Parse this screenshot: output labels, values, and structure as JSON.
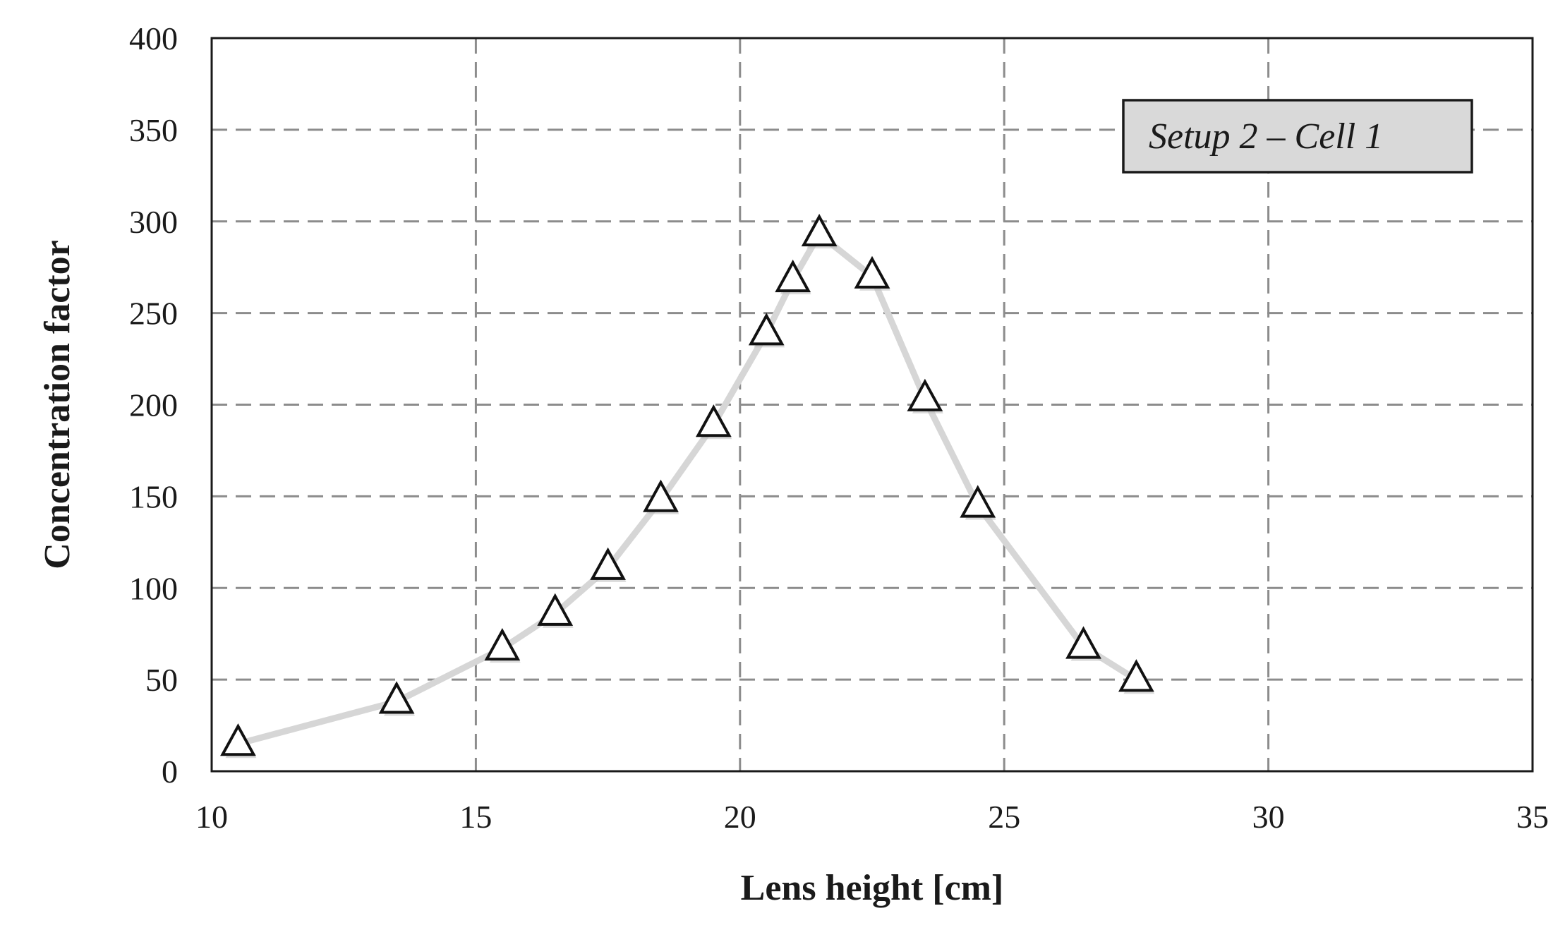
{
  "chart_data": {
    "type": "line",
    "xlabel": "Lens height [cm]",
    "ylabel": "Concentration factor",
    "xlim": [
      10,
      35
    ],
    "ylim": [
      0,
      400
    ],
    "xticks": [
      10,
      15,
      20,
      25,
      30,
      35
    ],
    "yticks": [
      0,
      50,
      100,
      150,
      200,
      250,
      300,
      350,
      400
    ],
    "grid": true,
    "legend_position": "top-right",
    "series": [
      {
        "name": "Setup 2 – Cell 1",
        "marker": "triangle",
        "color": "#d6d6d6",
        "x": [
          10.5,
          13.5,
          15.5,
          16.5,
          17.5,
          18.5,
          19.5,
          20.5,
          21,
          21.5,
          22.5,
          23.5,
          24.5,
          26.5,
          27.5
        ],
        "y": [
          15,
          38,
          67,
          86,
          111,
          148,
          189,
          239,
          268,
          293,
          270,
          203,
          145,
          68,
          50
        ]
      }
    ]
  }
}
